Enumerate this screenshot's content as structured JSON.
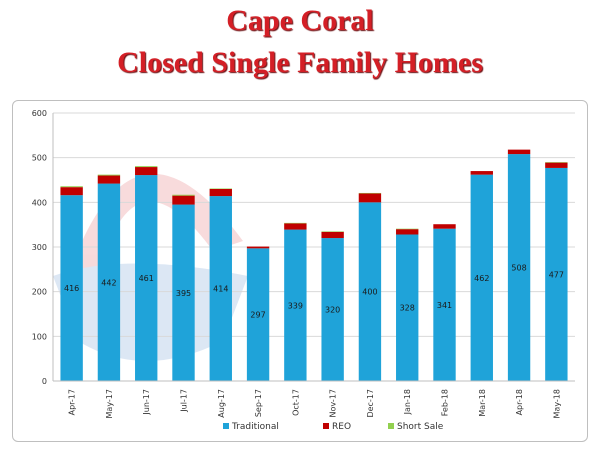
{
  "header": {
    "title_line1": "Cape Coral",
    "title_line2": "Closed Single Family Homes"
  },
  "colors": {
    "title": "#d41f26",
    "traditional": "#1fa3d9",
    "reo": "#c00000",
    "short_sale": "#92d050",
    "grid": "#d9d9d9"
  },
  "chart_data": {
    "type": "bar",
    "stacked": true,
    "categories": [
      "Apr-17",
      "May-17",
      "Jun-17",
      "Jul-17",
      "Aug-17",
      "Sep-17",
      "Oct-17",
      "Nov-17",
      "Dec-17",
      "Jan-18",
      "Feb-18",
      "Mar-18",
      "Apr-18",
      "May-18"
    ],
    "series": [
      {
        "name": "Traditional",
        "color": "#1fa3d9",
        "values": [
          416,
          442,
          461,
          395,
          414,
          297,
          339,
          320,
          400,
          328,
          341,
          462,
          508,
          477
        ],
        "labels": [
          "416",
          "442",
          "461",
          "395",
          "414",
          "297",
          "339",
          "320",
          "400",
          "328",
          "341",
          "462",
          "508",
          "477"
        ]
      },
      {
        "name": "REO",
        "color": "#c00000",
        "values": [
          18,
          18,
          18,
          20,
          16,
          4,
          14,
          14,
          20,
          12,
          10,
          8,
          10,
          12
        ]
      },
      {
        "name": "Short Sale",
        "color": "#92d050",
        "values": [
          2,
          2,
          2,
          2,
          1,
          0,
          1,
          1,
          1,
          1,
          0,
          0,
          0,
          1
        ]
      }
    ],
    "ylim": [
      0,
      600
    ],
    "yticks": [
      "0",
      "100",
      "200",
      "300",
      "400",
      "500",
      "600"
    ],
    "grid": true,
    "legend_position": "bottom"
  }
}
